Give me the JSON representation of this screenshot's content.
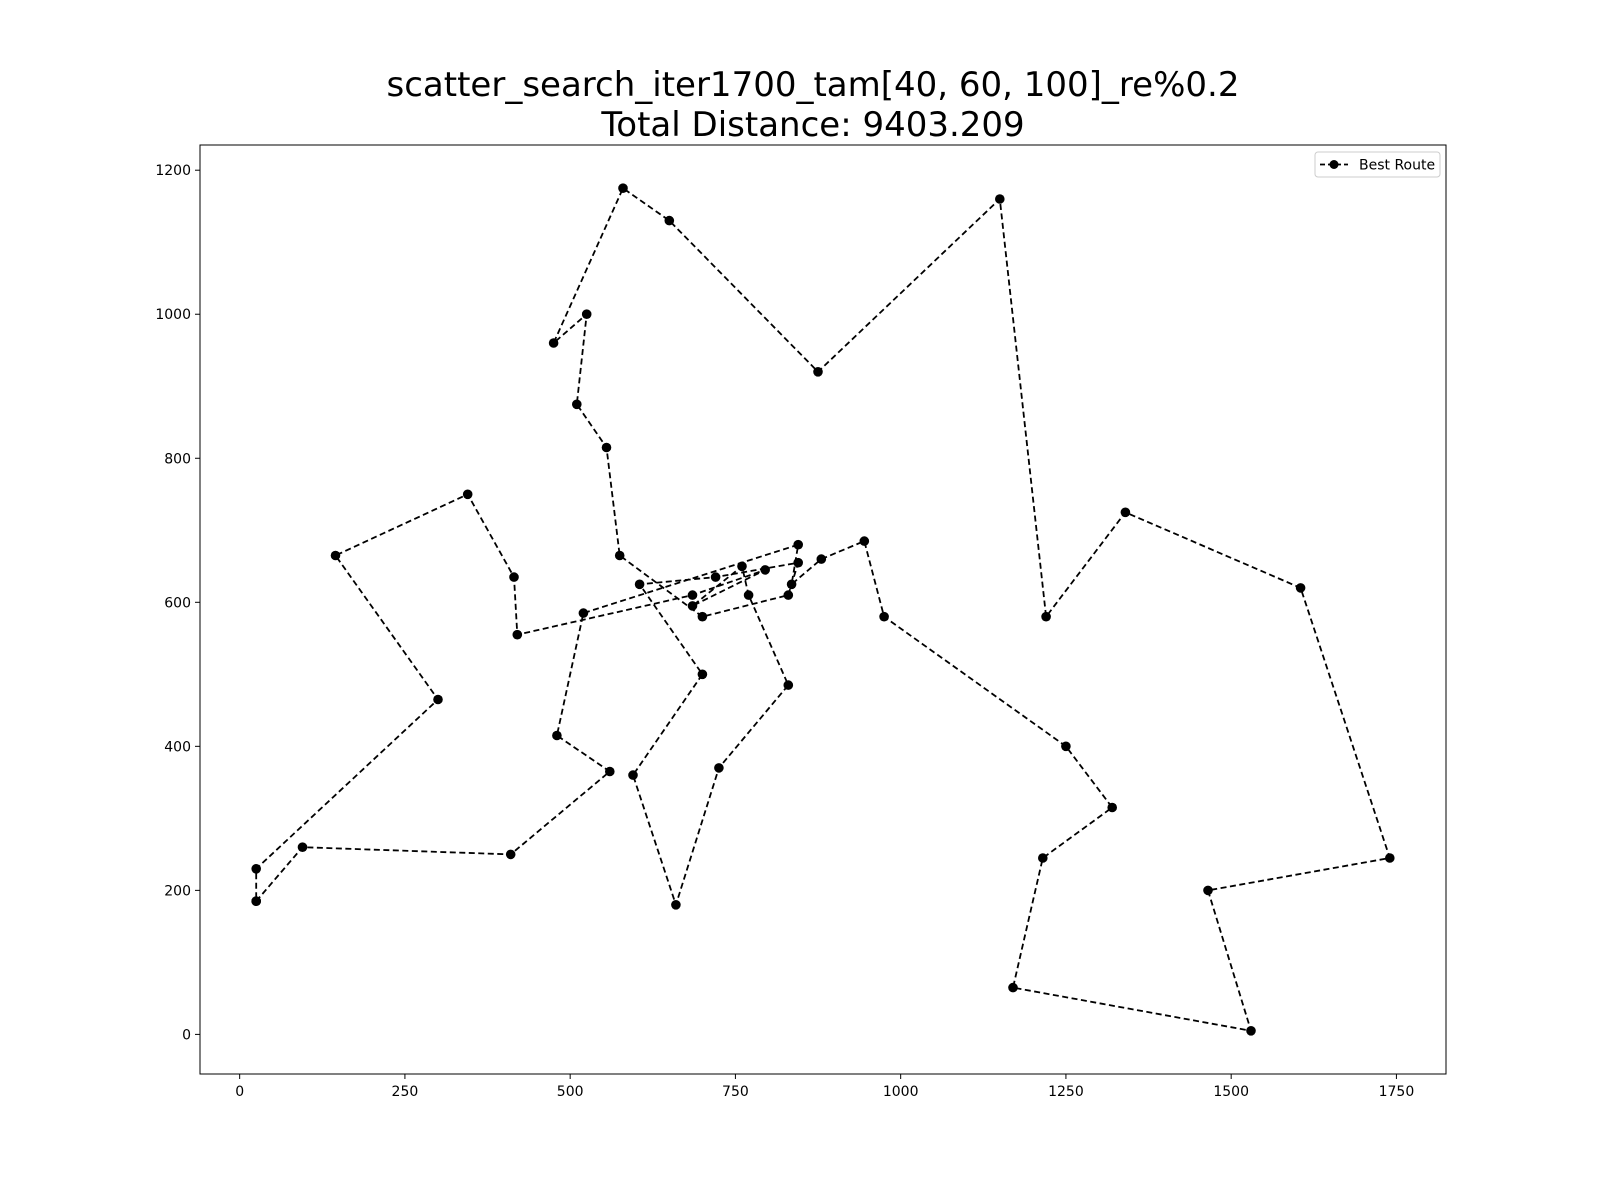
{
  "chart_data": {
    "type": "line",
    "title_line1": "scatter_search_iter1700_tam[40, 60, 100]_re%0.2",
    "title_line2": "Total Distance: 9403.209",
    "xlabel": "",
    "ylabel": "",
    "xlim": [
      -60,
      1825
    ],
    "ylim": [
      -55,
      1235
    ],
    "xticks": [
      0,
      250,
      500,
      750,
      1000,
      1250,
      1500,
      1750
    ],
    "yticks": [
      0,
      200,
      400,
      600,
      800,
      1000,
      1200
    ],
    "grid": false,
    "legend": {
      "position": "top-right",
      "entries": [
        "Best Route"
      ]
    },
    "series": [
      {
        "name": "Best Route",
        "color": "#000000",
        "line_style": "dashed",
        "marker": "circle",
        "points": [
          [
            25,
            185
          ],
          [
            95,
            260
          ],
          [
            410,
            250
          ],
          [
            560,
            365
          ],
          [
            480,
            415
          ],
          [
            520,
            585
          ],
          [
            845,
            680
          ],
          [
            835,
            625
          ],
          [
            880,
            660
          ],
          [
            945,
            685
          ],
          [
            975,
            580
          ],
          [
            1250,
            400
          ],
          [
            1320,
            315
          ],
          [
            1215,
            245
          ],
          [
            1170,
            65
          ],
          [
            1530,
            5
          ],
          [
            1465,
            200
          ],
          [
            1740,
            245
          ],
          [
            1605,
            620
          ],
          [
            1340,
            725
          ],
          [
            1220,
            580
          ],
          [
            1150,
            1160
          ],
          [
            875,
            920
          ],
          [
            650,
            1130
          ],
          [
            580,
            1175
          ],
          [
            475,
            960
          ],
          [
            525,
            1000
          ],
          [
            510,
            875
          ],
          [
            555,
            815
          ],
          [
            575,
            665
          ],
          [
            700,
            580
          ],
          [
            830,
            610
          ],
          [
            845,
            655
          ],
          [
            720,
            635
          ],
          [
            605,
            625
          ],
          [
            700,
            500
          ],
          [
            595,
            360
          ],
          [
            660,
            180
          ],
          [
            725,
            370
          ],
          [
            830,
            485
          ],
          [
            770,
            610
          ],
          [
            760,
            650
          ],
          [
            685,
            595
          ],
          [
            795,
            645
          ],
          [
            685,
            610
          ],
          [
            420,
            555
          ],
          [
            415,
            635
          ],
          [
            345,
            750
          ],
          [
            145,
            665
          ],
          [
            300,
            465
          ],
          [
            25,
            230
          ],
          [
            25,
            185
          ]
        ]
      }
    ]
  }
}
